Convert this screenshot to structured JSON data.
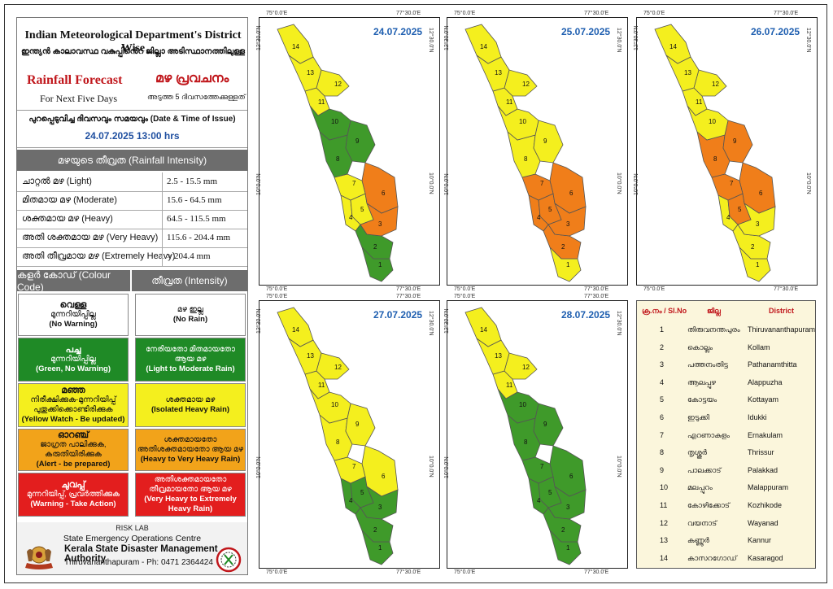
{
  "header": {
    "title_en": "Indian Meteorological Department's District Wise",
    "title_ml": "ഇന്ത്യൻ കാലാവസ്ഥ വകുപ്പിൻെറ ജില്ലാ അടിസ്ഥാനത്തിലുള്ള",
    "forecast_en": "Rainfall Forecast",
    "forecast_ml": "മഴ പ്രവചനം",
    "next_days_en": "For Next Five Days",
    "next_days_ml": "അടുത്ത 5 ദിവസത്തേക്കുള്ളത്",
    "issue_label": "പുറപ്പെടുവിച്ച ദിവസവും സമയവും (Date & Time of Issue)",
    "issue_datetime": "24.07.2025   13:00 hrs"
  },
  "intensity": {
    "title": "മഴയുടെ തീവ്രത (Rainfall Intensity)",
    "rows": [
      {
        "label": "ചാറ്റൽ മഴ (Light)",
        "range": "2.5 - 15.5 mm"
      },
      {
        "label": "മിതമായ മഴ (Moderate)",
        "range": "15.6 - 64.5 mm"
      },
      {
        "label": "ശക്തമായ മഴ (Heavy)",
        "range": "64.5 - 115.5 mm"
      },
      {
        "label": "അതി ശക്തമായ മഴ (Very Heavy)",
        "range": "115.6 - 204.4 mm"
      },
      {
        "label": "അതി തീവ്രമായ മഴ (Extremely Heavy)",
        "range": "> 204.4 mm"
      }
    ]
  },
  "colour_code": {
    "col1_title": "കളർ കോഡ് (Colour Code)",
    "col2_title": "തീവ്രത (Intensity)",
    "rows": [
      {
        "color": "#ffffff",
        "text_color": "#111111",
        "c1_title": "വെള്ള",
        "c1_ml": "മുന്നറിയിപ്പില്ല",
        "c1_en": "(No Warning)",
        "c2_ml": "മഴ ഇല്ല",
        "c2_en": "(No Rain)"
      },
      {
        "color": "#1f8a26",
        "text_color": "#ffffff",
        "c1_title": "പച്ച",
        "c1_ml": "മുന്നറിയിപ്പില്ല",
        "c1_en": "(Green, No Warning)",
        "c2_ml": "നേരിയതോ മിതമായതോ ആയ മഴ",
        "c2_en": "(Light to Moderate Rain)"
      },
      {
        "color": "#f4ef1e",
        "text_color": "#111111",
        "c1_title": "മഞ്ഞ",
        "c1_ml": "നിരീക്ഷിക്കുക-മുന്നറിയിപ്പ് പുതുക്കിക്കൊണ്ടിരിക്കുക",
        "c1_en": "(Yellow Watch - Be updated)",
        "c2_ml": "ശക്തമായ മഴ",
        "c2_en": "(Isolated Heavy Rain)"
      },
      {
        "color": "#f2a31a",
        "text_color": "#111111",
        "c1_title": "ഓറഞ്ച്",
        "c1_ml": "ജാഗ്രത പാലിക്കുക, കരുതിയിരിക്കുക",
        "c1_en": "(Alert - be prepared)",
        "c2_ml": "ശക്തമായതോ അതിശക്തമായതോ ആയ മഴ",
        "c2_en": "(Heavy to Very Heavy Rain)"
      },
      {
        "color": "#e31e1e",
        "text_color": "#ffffff",
        "c1_title": "ചുവപ്പ്",
        "c1_ml": "മുന്നറിയിപ്പ്, പ്രവർത്തിക്കുക",
        "c1_en": "(Warning - Take Action)",
        "c2_ml": "അതിശക്തമായതോ തീവ്രമായതോ ആയ മഴ",
        "c2_en": "(Very Heavy to Extremely Heavy Rain)"
      }
    ]
  },
  "footer": {
    "lab": "RISK LAB",
    "centre": "State Emergency Operations Centre",
    "authority": "Kerala State Disaster Management Authority",
    "address": "Thiruvananthapuram - Ph: 0471 2364424"
  },
  "coords": {
    "lon_left": "75°0.0'E",
    "lon_right": "77°30.0'E",
    "lat_top": "12°30.0'N",
    "lat_mid": "10°0.0'N"
  },
  "colors": {
    "green": "#3f9a2a",
    "yellow": "#f4ef1e",
    "orange": "#f07e1a",
    "border": "#555555"
  },
  "maps": [
    {
      "date": "24.07.2025",
      "districts": {
        "1": "green",
        "2": "green",
        "3": "orange",
        "4": "yellow",
        "5": "yellow",
        "6": "orange",
        "7": "yellow",
        "8": "green",
        "9": "green",
        "10": "green",
        "11": "yellow",
        "12": "yellow",
        "13": "yellow",
        "14": "yellow"
      }
    },
    {
      "date": "25.07.2025",
      "districts": {
        "1": "yellow",
        "2": "orange",
        "3": "orange",
        "4": "orange",
        "5": "orange",
        "6": "orange",
        "7": "orange",
        "8": "yellow",
        "9": "yellow",
        "10": "yellow",
        "11": "yellow",
        "12": "yellow",
        "13": "yellow",
        "14": "yellow"
      }
    },
    {
      "date": "26.07.2025",
      "districts": {
        "1": "yellow",
        "2": "yellow",
        "3": "yellow",
        "4": "yellow",
        "5": "orange",
        "6": "orange",
        "7": "orange",
        "8": "orange",
        "9": "orange",
        "10": "yellow",
        "11": "yellow",
        "12": "yellow",
        "13": "yellow",
        "14": "yellow"
      }
    },
    {
      "date": "27.07.2025",
      "districts": {
        "1": "green",
        "2": "green",
        "3": "green",
        "4": "green",
        "5": "green",
        "6": "yellow",
        "7": "yellow",
        "8": "yellow",
        "9": "yellow",
        "10": "yellow",
        "11": "yellow",
        "12": "yellow",
        "13": "yellow",
        "14": "yellow"
      }
    },
    {
      "date": "28.07.2025",
      "districts": {
        "1": "green",
        "2": "green",
        "3": "green",
        "4": "green",
        "5": "green",
        "6": "green",
        "7": "green",
        "8": "green",
        "9": "green",
        "10": "green",
        "11": "yellow",
        "12": "yellow",
        "13": "yellow",
        "14": "yellow"
      }
    }
  ],
  "district_legend": {
    "col_slno": "ക്ര.നം / Sl.No",
    "col_ml": "ജില്ല",
    "col_en": "District",
    "rows": [
      {
        "no": "1",
        "ml": "തിരുവനന്തപുരം",
        "en": "Thiruvananthapuram"
      },
      {
        "no": "2",
        "ml": "കൊല്ലം",
        "en": "Kollam"
      },
      {
        "no": "3",
        "ml": "പത്തനംതിട്ട",
        "en": "Pathanamthitta"
      },
      {
        "no": "4",
        "ml": "ആലപ്പുഴ",
        "en": "Alappuzha"
      },
      {
        "no": "5",
        "ml": "കോട്ടയം",
        "en": "Kottayam"
      },
      {
        "no": "6",
        "ml": "ഇടുക്കി",
        "en": "Idukki"
      },
      {
        "no": "7",
        "ml": "എറണാകുളം",
        "en": "Ernakulam"
      },
      {
        "no": "8",
        "ml": "തൃശ്ശൂർ",
        "en": "Thrissur"
      },
      {
        "no": "9",
        "ml": "പാലക്കാട്",
        "en": "Palakkad"
      },
      {
        "no": "10",
        "ml": "മലപ്പുറം",
        "en": "Malappuram"
      },
      {
        "no": "11",
        "ml": "കോഴിക്കോട്",
        "en": "Kozhikode"
      },
      {
        "no": "12",
        "ml": "വയനാട്",
        "en": "Wayanad"
      },
      {
        "no": "13",
        "ml": "കണ്ണൂർ",
        "en": "Kannur"
      },
      {
        "no": "14",
        "ml": "കാസറഗോഡ്",
        "en": "Kasaragod"
      }
    ]
  }
}
